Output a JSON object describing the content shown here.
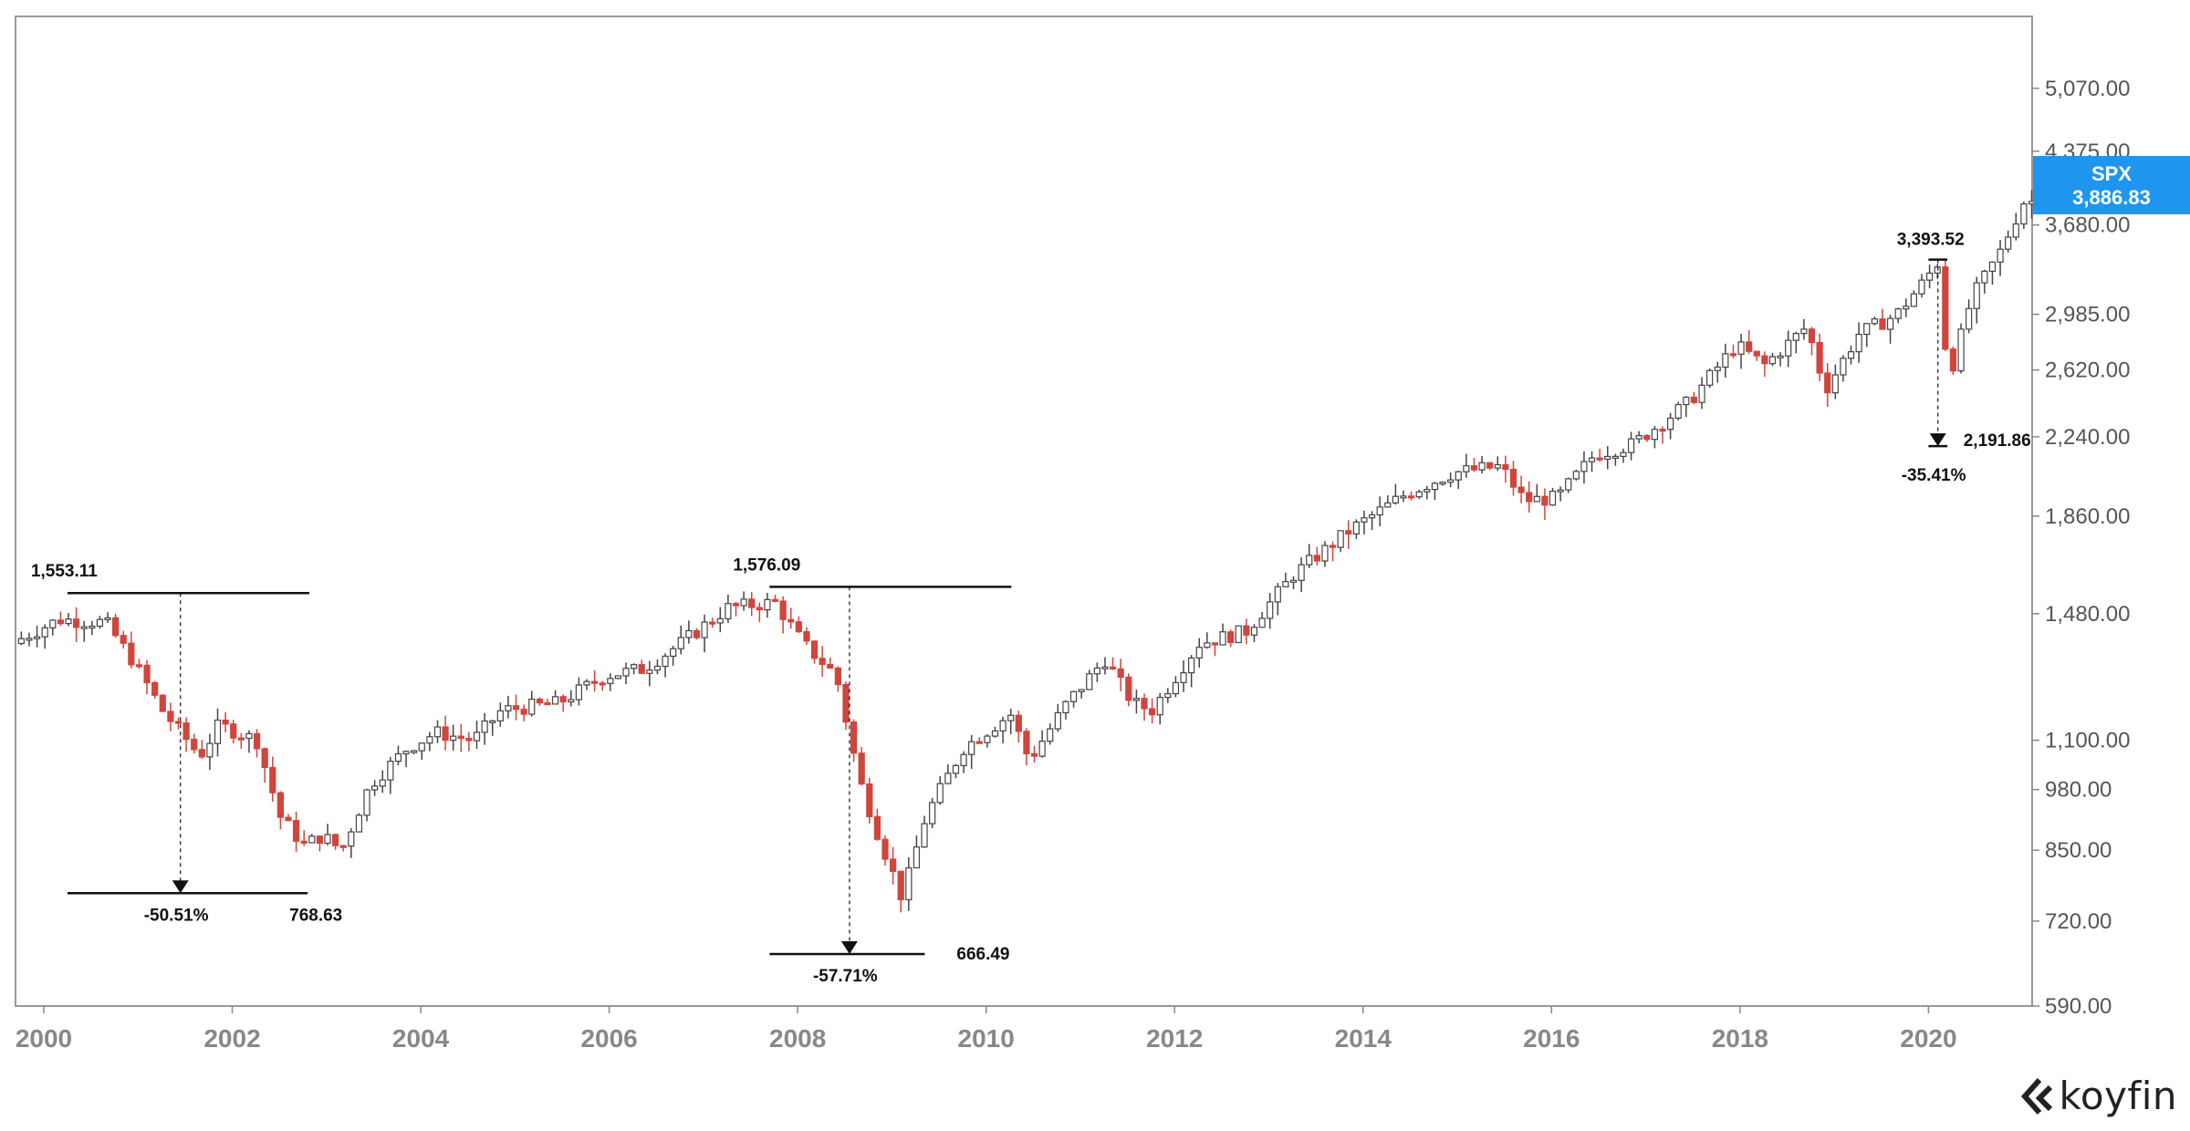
{
  "chart_data": {
    "type": "candlestick",
    "ticker": "SPX",
    "last_value": "3,886.83",
    "y_scale": "log",
    "ylim": [
      590,
      6000
    ],
    "xlim": [
      1999.7,
      2021.1
    ],
    "y_ticks": [
      {
        "value": 590,
        "label": "590.00"
      },
      {
        "value": 720,
        "label": "720.00"
      },
      {
        "value": 850,
        "label": "850.00"
      },
      {
        "value": 980,
        "label": "980.00"
      },
      {
        "value": 1100,
        "label": "1,100.00"
      },
      {
        "value": 1480,
        "label": "1,480.00"
      },
      {
        "value": 1860,
        "label": "1,860.00"
      },
      {
        "value": 2240,
        "label": "2,240.00"
      },
      {
        "value": 2620,
        "label": "2,620.00"
      },
      {
        "value": 2985,
        "label": "2,985.00"
      },
      {
        "value": 3680,
        "label": "3,680.00"
      },
      {
        "value": 4375,
        "label": "4,375.00"
      },
      {
        "value": 5070,
        "label": "5,070.00"
      }
    ],
    "x_ticks": [
      2000,
      2002,
      2004,
      2006,
      2008,
      2010,
      2012,
      2014,
      2016,
      2018,
      2020
    ],
    "x_tick_labels": [
      "2000",
      "2002",
      "2004",
      "2006",
      "2008",
      "2010",
      "2012",
      "2014",
      "2016",
      "2018",
      "2020"
    ],
    "trend_points": [
      [
        1999.7,
        1380
      ],
      [
        2000.2,
        1460
      ],
      [
        2000.7,
        1450
      ],
      [
        2001.0,
        1320
      ],
      [
        2001.3,
        1180
      ],
      [
        2001.7,
        1060
      ],
      [
        2001.9,
        1140
      ],
      [
        2002.3,
        1100
      ],
      [
        2002.55,
        920
      ],
      [
        2002.8,
        860
      ],
      [
        2003.0,
        880
      ],
      [
        2003.2,
        850
      ],
      [
        2003.5,
        990
      ],
      [
        2003.9,
        1080
      ],
      [
        2004.2,
        1120
      ],
      [
        2004.6,
        1100
      ],
      [
        2004.9,
        1180
      ],
      [
        2005.5,
        1200
      ],
      [
        2006.0,
        1280
      ],
      [
        2006.4,
        1300
      ],
      [
        2006.8,
        1380
      ],
      [
        2007.3,
        1500
      ],
      [
        2007.8,
        1520
      ],
      [
        2008.1,
        1380
      ],
      [
        2008.45,
        1280
      ],
      [
        2008.7,
        1000
      ],
      [
        2008.9,
        880
      ],
      [
        2009.15,
        760
      ],
      [
        2009.4,
        920
      ],
      [
        2009.8,
        1080
      ],
      [
        2010.3,
        1170
      ],
      [
        2010.5,
        1050
      ],
      [
        2010.9,
        1200
      ],
      [
        2011.3,
        1330
      ],
      [
        2011.6,
        1200
      ],
      [
        2011.8,
        1180
      ],
      [
        2012.3,
        1380
      ],
      [
        2012.8,
        1420
      ],
      [
        2013.3,
        1620
      ],
      [
        2013.9,
        1800
      ],
      [
        2014.5,
        1960
      ],
      [
        2015.0,
        2060
      ],
      [
        2015.5,
        2090
      ],
      [
        2015.75,
        1930
      ],
      [
        2016.1,
        1940
      ],
      [
        2016.5,
        2150
      ],
      [
        2016.9,
        2200
      ],
      [
        2017.5,
        2430
      ],
      [
        2018.0,
        2780
      ],
      [
        2018.3,
        2650
      ],
      [
        2018.75,
        2900
      ],
      [
        2018.95,
        2500
      ],
      [
        2019.3,
        2850
      ],
      [
        2019.7,
        2980
      ],
      [
        2020.0,
        3230
      ],
      [
        2020.15,
        3380
      ],
      [
        2020.25,
        2550
      ],
      [
        2020.5,
        3100
      ],
      [
        2020.8,
        3450
      ],
      [
        2021.05,
        3886.83
      ]
    ],
    "drawdowns": [
      {
        "peak": 1553.11,
        "trough": 768.63,
        "peak_label": "1,553.11",
        "trough_label": "768.63",
        "change": "-50.51%",
        "x_start": 2000.3,
        "x_end": 2002.8,
        "x_mid": 2001.45
      },
      {
        "peak": 1576.09,
        "trough": 666.49,
        "peak_label": "1,576.09",
        "trough_label": "666.49",
        "change": "-57.71%",
        "x_start": 2007.75,
        "x_end": 2009.3,
        "x_mid": 2008.55
      },
      {
        "peak": 3393.52,
        "trough": 2191.86,
        "peak_label": "3,393.52",
        "trough_label": "2,191.86",
        "change": "-35.41%",
        "x_start": 2020.0,
        "x_end": 2020.2,
        "x_mid": 2020.1
      }
    ],
    "colors": {
      "up": "#ffffff",
      "up_stroke": "#444444",
      "down": "#d0453c",
      "badge": "#1e96f0",
      "annotation": "#111111"
    }
  },
  "brand": {
    "name": "koyfin"
  }
}
